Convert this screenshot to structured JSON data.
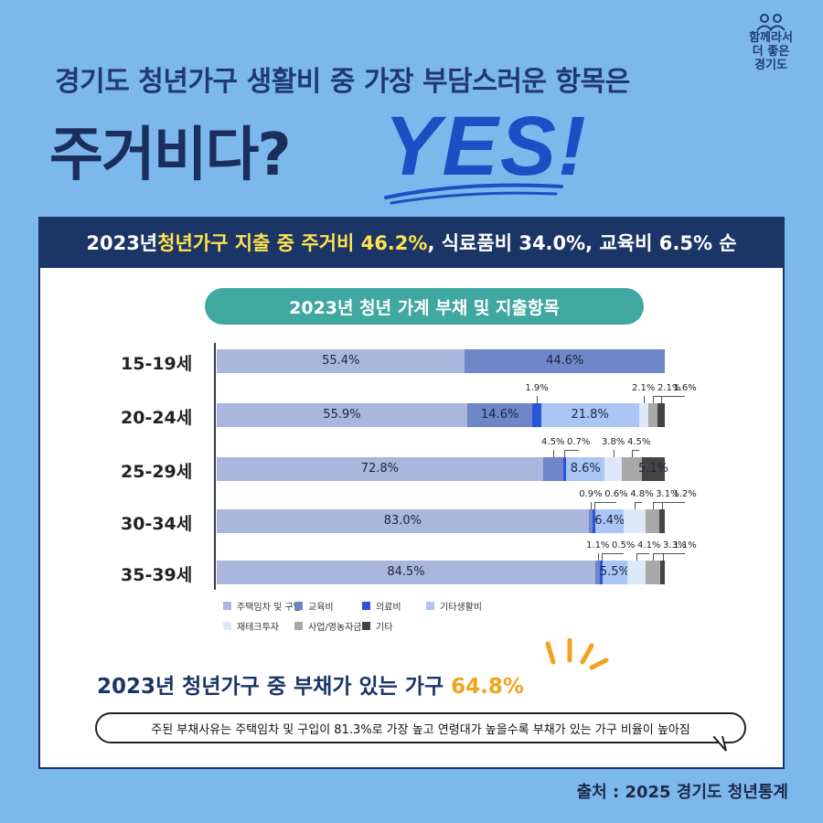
{
  "logo": {
    "lines": [
      "함께라서",
      "더 좋은",
      "경기도"
    ]
  },
  "header": {
    "subtitle": "경기도 청년가구 생활비 중 가장 부담스러운 항목은",
    "title": "주거비다?",
    "yes": "YES!"
  },
  "banner": {
    "part1": "2023년 ",
    "highlight": "청년가구 지출 중 주거비 46.2%",
    "part2": ", 식료품비 34.0%, 교육비 6.5% 순"
  },
  "chart_data": {
    "type": "bar",
    "orientation": "horizontal-stacked",
    "title": "2023년 청년 가계 부채 및 지출항목",
    "categories": [
      "15-19세",
      "20-24세",
      "25-29세",
      "30-34세",
      "35-39세"
    ],
    "series": [
      {
        "name": "주택임차 및 구입",
        "color": "#aab6dc",
        "values": [
          55.4,
          55.9,
          72.8,
          83.0,
          84.5
        ]
      },
      {
        "name": "교육비",
        "color": "#6f86c8",
        "values": [
          44.6,
          14.6,
          4.5,
          0.9,
          1.1
        ]
      },
      {
        "name": "의료비",
        "color": "#2a55d8",
        "values": [
          0,
          1.9,
          0.7,
          0.6,
          0.5
        ]
      },
      {
        "name": "기타생활비",
        "color": "#a9c6f5",
        "values": [
          0,
          21.8,
          8.6,
          6.4,
          5.5
        ]
      },
      {
        "name": "재테크투자",
        "color": "#dde8f9",
        "values": [
          0,
          2.1,
          3.8,
          4.8,
          4.1
        ]
      },
      {
        "name": "사업/영농자금",
        "color": "#a8a8a8",
        "values": [
          0,
          2.1,
          4.5,
          3.1,
          3.3
        ]
      },
      {
        "name": "기타",
        "color": "#444444",
        "values": [
          0,
          1.6,
          5.1,
          1.2,
          1.1
        ]
      }
    ],
    "labels": [
      [
        "55.4%",
        "44.6%"
      ],
      [
        "55.9%",
        "14.6%",
        "1.9%",
        "21.8%",
        "2.1%",
        "2.1%",
        "1.6%"
      ],
      [
        "72.8%",
        "4.5%",
        "0.7%",
        "8.6%",
        "3.8%",
        "4.5%",
        "5.1%"
      ],
      [
        "83.0%",
        "0.9%",
        "0.6%",
        "6.4%",
        "4.8%",
        "3.1%",
        "1.2%"
      ],
      [
        "84.5%",
        "1.1%",
        "0.5%",
        "5.5%",
        "4.1%",
        "3.3%",
        "1.1%"
      ]
    ],
    "xlim": [
      0,
      100
    ],
    "legend_position": "bottom-left"
  },
  "debt": {
    "text": "2023년 청년가구 중 부채가 있는 가구 ",
    "percent": "64.8%"
  },
  "note": "주된 부채사유는 주택임차 및 구입이 81.3%로 가장 높고 연령대가 높을수록 부채가 있는 가구 비율이 높아짐",
  "source": "출처 : 2025 경기도 청년통계"
}
